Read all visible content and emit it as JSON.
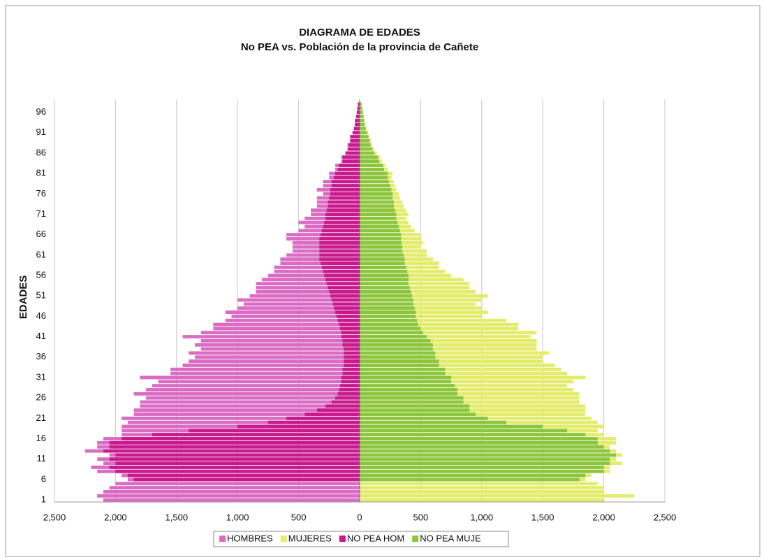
{
  "chart_data": {
    "type": "pyramid",
    "title": "DIAGRAMA DE EDADES",
    "subtitle": "No PEA vs. Población de la provincia de Cañete",
    "y_label": "EDADES",
    "categories": [
      1,
      null,
      null,
      null,
      null,
      6,
      null,
      null,
      null,
      null,
      11,
      null,
      null,
      null,
      null,
      16,
      null,
      null,
      null,
      null,
      21,
      null,
      null,
      null,
      null,
      26,
      null,
      null,
      null,
      null,
      31,
      null,
      null,
      null,
      null,
      36,
      null,
      null,
      null,
      null,
      41,
      null,
      null,
      null,
      null,
      46,
      null,
      null,
      null,
      null,
      51,
      null,
      null,
      null,
      null,
      56,
      null,
      null,
      null,
      null,
      61,
      null,
      null,
      null,
      null,
      66,
      null,
      null,
      null,
      null,
      71,
      null,
      null,
      null,
      null,
      76,
      null,
      null,
      null,
      null,
      81,
      null,
      null,
      null,
      null,
      86,
      null,
      null,
      null,
      null,
      91,
      null,
      null,
      null,
      null,
      96,
      null,
      null
    ],
    "xlim": [
      -2500,
      2500
    ],
    "xticks": [
      {
        "value": -2500,
        "label": "2,500"
      },
      {
        "value": -2000,
        "label": "2,000"
      },
      {
        "value": -1500,
        "label": "1,500"
      },
      {
        "value": -1000,
        "label": "1,000"
      },
      {
        "value": -500,
        "label": "500"
      },
      0,
      500,
      {
        "value": 1000,
        "label": "1,000"
      },
      {
        "value": 1500,
        "label": "1,500"
      },
      {
        "value": 2000,
        "label": "2,000"
      },
      {
        "value": 2500,
        "label": "2,500"
      }
    ],
    "grid": true,
    "legend": "bottom",
    "series": [
      {
        "name": "HOMBRES",
        "color": "#da6cc4",
        "values": [
          -2100,
          -2150,
          -2100,
          -2050,
          -2000,
          -1900,
          -1950,
          -2150,
          -2200,
          -2100,
          -2150,
          -2050,
          -2250,
          -2150,
          -2150,
          -2100,
          -1950,
          -1950,
          -1950,
          -1900,
          -1950,
          -1850,
          -1850,
          -1800,
          -1800,
          -1750,
          -1850,
          -1750,
          -1700,
          -1650,
          -1800,
          -1550,
          -1550,
          -1450,
          -1400,
          -1350,
          -1400,
          -1300,
          -1350,
          -1300,
          -1450,
          -1300,
          -1200,
          -1200,
          -1100,
          -1050,
          -1100,
          -1000,
          -950,
          -1000,
          -900,
          -850,
          -850,
          -850,
          -800,
          -750,
          -700,
          -700,
          -650,
          -650,
          -600,
          -550,
          -550,
          -550,
          -600,
          -600,
          -500,
          -450,
          -500,
          -450,
          -400,
          -400,
          -350,
          -350,
          -350,
          -300,
          -350,
          -300,
          -300,
          -250,
          -250,
          -200,
          -200,
          -150,
          -150,
          -120,
          -100,
          -100,
          -80,
          -80,
          -60,
          -50,
          -40,
          -40,
          -30,
          -25,
          -20,
          -15
        ]
      },
      {
        "name": "MUJERES",
        "color": "#e4ec6c",
        "values": [
          2000,
          2250,
          2000,
          2000,
          1950,
          1850,
          1900,
          2050,
          2050,
          2150,
          2100,
          2150,
          2100,
          2050,
          2100,
          2100,
          2000,
          1950,
          2000,
          1950,
          1900,
          1850,
          1850,
          1850,
          1800,
          1800,
          1800,
          1750,
          1700,
          1750,
          1850,
          1700,
          1650,
          1600,
          1500,
          1500,
          1550,
          1450,
          1450,
          1450,
          1400,
          1450,
          1300,
          1300,
          1200,
          1000,
          1050,
          1000,
          950,
          1000,
          1050,
          950,
          900,
          900,
          850,
          750,
          700,
          650,
          650,
          600,
          550,
          550,
          500,
          520,
          500,
          500,
          450,
          420,
          400,
          380,
          400,
          380,
          360,
          350,
          330,
          320,
          300,
          290,
          280,
          260,
          270,
          230,
          210,
          180,
          170,
          140,
          120,
          100,
          90,
          80,
          70,
          55,
          45,
          40,
          35,
          28,
          22,
          18
        ]
      },
      {
        "name": "NO PEA HOM",
        "color": "#c81a8c",
        "values": [
          0,
          0,
          0,
          0,
          0,
          -1850,
          -1900,
          -2000,
          -2050,
          -2000,
          -2050,
          -2000,
          -2100,
          -2050,
          -2050,
          -1950,
          -1700,
          -1400,
          -1000,
          -750,
          -600,
          -450,
          -350,
          -280,
          -230,
          -200,
          -180,
          -170,
          -160,
          -150,
          -150,
          -140,
          -140,
          -130,
          -130,
          -130,
          -130,
          -130,
          -140,
          -140,
          -150,
          -150,
          -160,
          -170,
          -180,
          -190,
          -200,
          -210,
          -220,
          -230,
          -240,
          -250,
          -260,
          -270,
          -280,
          -290,
          -300,
          -310,
          -320,
          -330,
          -330,
          -330,
          -330,
          -330,
          -330,
          -320,
          -310,
          -300,
          -290,
          -280,
          -280,
          -270,
          -260,
          -260,
          -250,
          -240,
          -240,
          -230,
          -230,
          -210,
          -200,
          -180,
          -170,
          -140,
          -140,
          -110,
          -95,
          -90,
          -75,
          -75,
          -55,
          -45,
          -38,
          -36,
          -28,
          -22,
          -18,
          -14
        ]
      },
      {
        "name": "NO PEA MUJE",
        "color": "#8cc63e",
        "values": [
          0,
          0,
          0,
          0,
          0,
          1800,
          1850,
          2000,
          2000,
          2050,
          2050,
          2100,
          2050,
          2000,
          1950,
          1950,
          1850,
          1700,
          1500,
          1200,
          1050,
          950,
          900,
          900,
          850,
          850,
          800,
          800,
          780,
          750,
          750,
          700,
          700,
          650,
          650,
          620,
          620,
          600,
          600,
          580,
          550,
          520,
          500,
          480,
          470,
          460,
          460,
          450,
          440,
          440,
          430,
          420,
          410,
          400,
          400,
          400,
          390,
          380,
          370,
          370,
          360,
          350,
          350,
          340,
          340,
          340,
          330,
          320,
          310,
          300,
          300,
          290,
          280,
          280,
          270,
          270,
          260,
          250,
          240,
          230,
          230,
          200,
          190,
          160,
          150,
          120,
          105,
          90,
          80,
          72,
          62,
          50,
          40,
          36,
          32,
          26,
          20,
          16
        ]
      }
    ]
  }
}
